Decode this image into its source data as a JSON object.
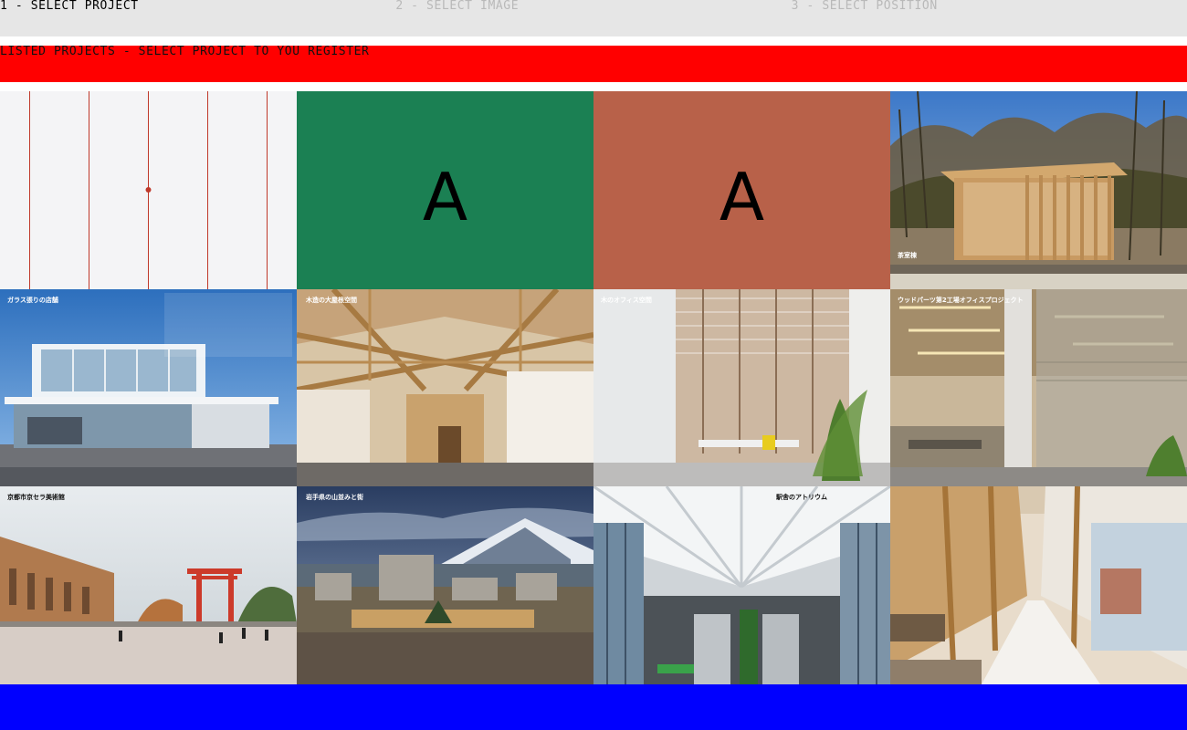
{
  "steps": [
    {
      "label": "1 - SELECT PROJECT"
    },
    {
      "label": "2 - SELECT IMAGE"
    },
    {
      "label": "3 - SELECT POSITION"
    }
  ],
  "banner": {
    "text": "LISTED PROJECTS - SELECT PROJECT TO YOU REGISTER"
  },
  "tiles": {
    "t2": {
      "letter": "A",
      "color": "#1b8053"
    },
    "t3": {
      "letter": "A",
      "color": "#b86149"
    }
  },
  "captions": {
    "t4": "茶室棟",
    "t5": "ガラス張りの店舗",
    "t6": "木造の大屋根空間",
    "t7": "木のオフィス空間",
    "t8": "ウッドパーツ第2工場オフィスプロジェクト",
    "t9": "京都市京セラ美術館",
    "t10": "岩手県の山並みと街",
    "t11": "駅舎のアトリウム"
  },
  "colors": {
    "step_bar": "#e6e6e6",
    "banner": "#ff0000",
    "footer": "#0000ff",
    "line_accent": "#c0392b"
  },
  "icons": {
    "marker": "dot-icon"
  }
}
